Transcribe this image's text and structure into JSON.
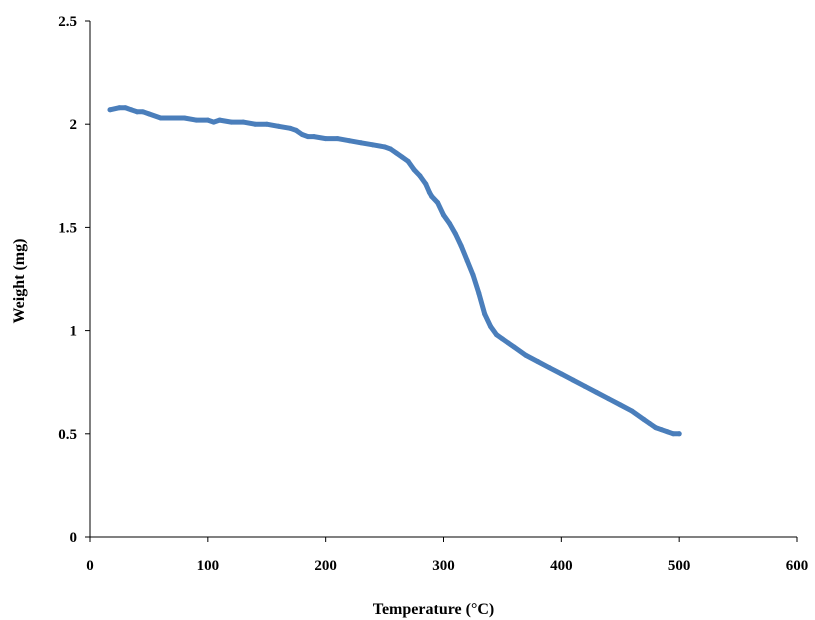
{
  "chart_data": {
    "type": "line",
    "title": "",
    "xlabel": "Temperature (°C)",
    "ylabel": "Weight (mg)",
    "xlim": [
      0,
      600
    ],
    "ylim": [
      0,
      2.5
    ],
    "x_ticks": [
      "0",
      "100",
      "200",
      "300",
      "400",
      "500",
      "600"
    ],
    "y_ticks": [
      "0",
      "0.5",
      "1",
      "1.5",
      "2",
      "2.5"
    ],
    "grid": false,
    "legend": "none",
    "series": [
      {
        "color": "#4a7ebb",
        "x": [
          17,
          25,
          30,
          35,
          40,
          45,
          50,
          60,
          70,
          80,
          90,
          100,
          105,
          110,
          120,
          130,
          140,
          150,
          160,
          170,
          175,
          180,
          185,
          190,
          200,
          210,
          220,
          230,
          240,
          250,
          255,
          260,
          265,
          270,
          275,
          280,
          285,
          288,
          290,
          295,
          300,
          305,
          310,
          315,
          320,
          325,
          330,
          335,
          340,
          345,
          350,
          355,
          360,
          370,
          380,
          390,
          400,
          410,
          420,
          430,
          440,
          450,
          460,
          470,
          475,
          480,
          485,
          490,
          495,
          500
        ],
        "y": [
          2.07,
          2.08,
          2.08,
          2.07,
          2.06,
          2.06,
          2.05,
          2.03,
          2.03,
          2.03,
          2.02,
          2.02,
          2.01,
          2.02,
          2.01,
          2.01,
          2.0,
          2.0,
          1.99,
          1.98,
          1.97,
          1.95,
          1.94,
          1.94,
          1.93,
          1.93,
          1.92,
          1.91,
          1.9,
          1.89,
          1.88,
          1.86,
          1.84,
          1.82,
          1.78,
          1.75,
          1.71,
          1.67,
          1.65,
          1.62,
          1.56,
          1.52,
          1.47,
          1.41,
          1.34,
          1.27,
          1.18,
          1.08,
          1.02,
          0.98,
          0.96,
          0.94,
          0.92,
          0.88,
          0.85,
          0.82,
          0.79,
          0.76,
          0.73,
          0.7,
          0.67,
          0.64,
          0.61,
          0.57,
          0.55,
          0.53,
          0.52,
          0.51,
          0.5,
          0.5
        ]
      }
    ]
  }
}
